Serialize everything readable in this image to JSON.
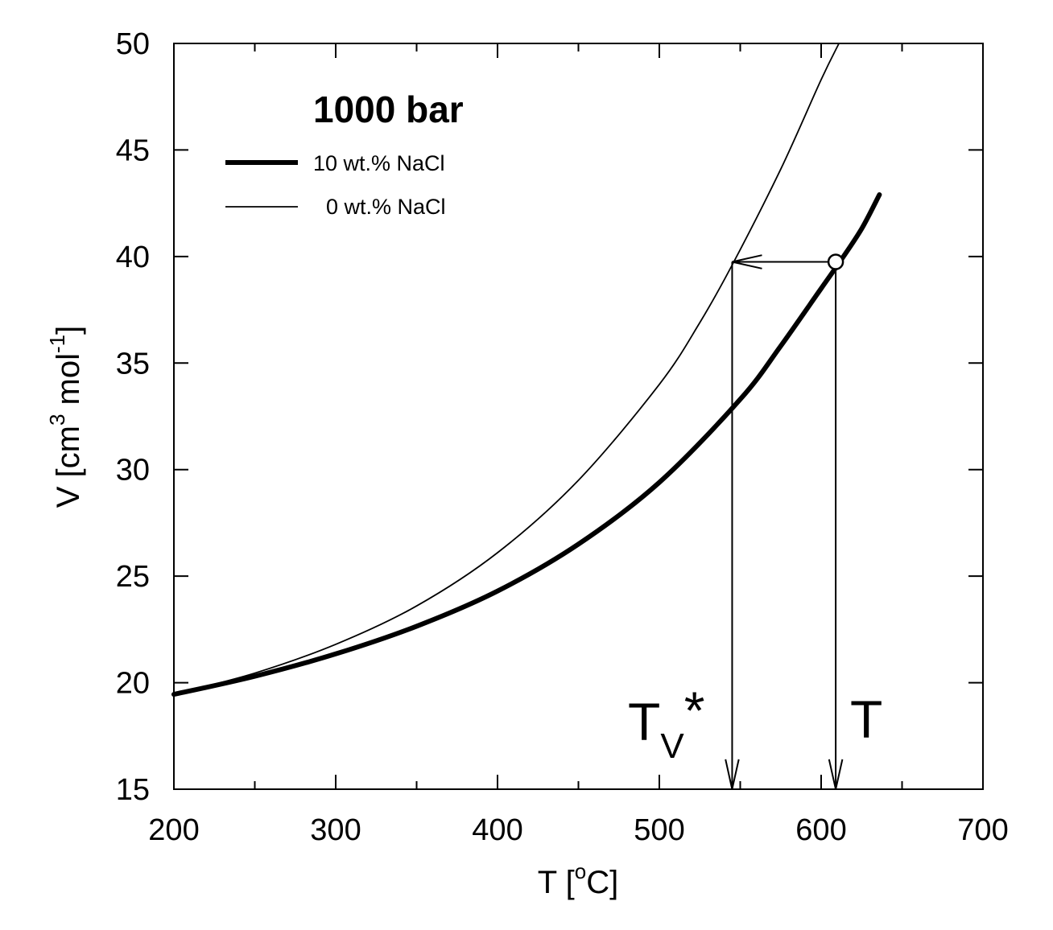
{
  "chart_data": {
    "type": "line",
    "title": "1000 bar",
    "xlabel": {
      "main": "T [",
      "sup": "o",
      "tail": "C]"
    },
    "ylabel": {
      "main": "V [cm",
      "sup1": "3",
      "mid": " mol",
      "sup2": "-1",
      "tail": "]"
    },
    "xlim": [
      200,
      700
    ],
    "ylim": [
      15,
      50
    ],
    "xticks": [
      200,
      300,
      400,
      500,
      600,
      700
    ],
    "yticks": [
      15,
      20,
      25,
      30,
      35,
      40,
      45,
      50
    ],
    "grid": false,
    "legend_position": "top-left",
    "series": [
      {
        "name": "10 wt.% NaCl",
        "style": "thick",
        "x": [
          200,
          250,
          300,
          350,
          400,
          450,
          500,
          550,
          575,
          600,
          612,
          625,
          636
        ],
        "y": [
          19.45,
          20.3,
          21.35,
          22.65,
          24.3,
          26.5,
          29.4,
          33.3,
          35.8,
          38.5,
          39.8,
          41.3,
          42.9
        ]
      },
      {
        "name": "0 wt.% NaCl",
        "style": "thin",
        "x": [
          200,
          250,
          300,
          350,
          400,
          450,
          500,
          525,
          545,
          575,
          600,
          611
        ],
        "y": [
          19.45,
          20.45,
          21.8,
          23.6,
          26.1,
          29.5,
          34.0,
          36.9,
          39.6,
          44.1,
          48.3,
          50.0
        ]
      }
    ],
    "annotations": [
      {
        "id": "point-T",
        "type": "open-circle",
        "x": 609,
        "y": 39.75
      },
      {
        "id": "arrow-horizontal",
        "type": "arrow",
        "from": [
          609,
          39.75
        ],
        "to": [
          545,
          39.75
        ]
      },
      {
        "id": "arrow-down-Tv",
        "type": "arrow",
        "from": [
          545,
          39.75
        ],
        "to": [
          545,
          15
        ]
      },
      {
        "id": "arrow-down-T",
        "type": "arrow",
        "from": [
          609,
          39.75
        ],
        "to": [
          609,
          15
        ]
      },
      {
        "id": "label-Tv",
        "main": "T",
        "sub": "V",
        "suffix": "*"
      },
      {
        "id": "label-T",
        "main": "T"
      }
    ]
  }
}
